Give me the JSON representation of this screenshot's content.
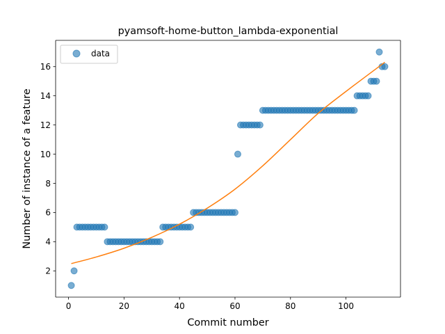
{
  "chart_data": {
    "type": "scatter",
    "title": "pyamsoft-home-button_lambda-exponential",
    "xlabel": "Commit number",
    "ylabel": "Number of instance of a feature",
    "xlim": [
      -4.65,
      119.65
    ],
    "ylim": [
      0.2,
      17.8
    ],
    "x_ticks": [
      0,
      20,
      40,
      60,
      80,
      100
    ],
    "y_ticks": [
      2,
      4,
      6,
      8,
      10,
      12,
      14,
      16
    ],
    "legend": {
      "position": "upper-left",
      "entries": [
        "data"
      ]
    },
    "grid": false,
    "series": [
      {
        "name": "data",
        "kind": "scatter",
        "color": "#1f77b4",
        "points": [
          [
            1,
            1
          ],
          [
            2,
            2
          ],
          [
            3,
            5
          ],
          [
            4,
            5
          ],
          [
            5,
            5
          ],
          [
            6,
            5
          ],
          [
            7,
            5
          ],
          [
            8,
            5
          ],
          [
            9,
            5
          ],
          [
            10,
            5
          ],
          [
            11,
            5
          ],
          [
            12,
            5
          ],
          [
            13,
            5
          ],
          [
            14,
            4
          ],
          [
            15,
            4
          ],
          [
            16,
            4
          ],
          [
            17,
            4
          ],
          [
            18,
            4
          ],
          [
            19,
            4
          ],
          [
            20,
            4
          ],
          [
            21,
            4
          ],
          [
            22,
            4
          ],
          [
            23,
            4
          ],
          [
            24,
            4
          ],
          [
            25,
            4
          ],
          [
            26,
            4
          ],
          [
            27,
            4
          ],
          [
            28,
            4
          ],
          [
            29,
            4
          ],
          [
            30,
            4
          ],
          [
            31,
            4
          ],
          [
            32,
            4
          ],
          [
            33,
            4
          ],
          [
            34,
            5
          ],
          [
            35,
            5
          ],
          [
            36,
            5
          ],
          [
            37,
            5
          ],
          [
            38,
            5
          ],
          [
            39,
            5
          ],
          [
            40,
            5
          ],
          [
            41,
            5
          ],
          [
            42,
            5
          ],
          [
            43,
            5
          ],
          [
            44,
            5
          ],
          [
            45,
            6
          ],
          [
            46,
            6
          ],
          [
            47,
            6
          ],
          [
            48,
            6
          ],
          [
            49,
            6
          ],
          [
            50,
            6
          ],
          [
            51,
            6
          ],
          [
            52,
            6
          ],
          [
            53,
            6
          ],
          [
            54,
            6
          ],
          [
            55,
            6
          ],
          [
            56,
            6
          ],
          [
            57,
            6
          ],
          [
            58,
            6
          ],
          [
            59,
            6
          ],
          [
            60,
            6
          ],
          [
            61,
            10
          ],
          [
            62,
            12
          ],
          [
            63,
            12
          ],
          [
            64,
            12
          ],
          [
            65,
            12
          ],
          [
            66,
            12
          ],
          [
            67,
            12
          ],
          [
            68,
            12
          ],
          [
            69,
            12
          ],
          [
            70,
            13
          ],
          [
            71,
            13
          ],
          [
            72,
            13
          ],
          [
            73,
            13
          ],
          [
            74,
            13
          ],
          [
            75,
            13
          ],
          [
            76,
            13
          ],
          [
            77,
            13
          ],
          [
            78,
            13
          ],
          [
            79,
            13
          ],
          [
            80,
            13
          ],
          [
            81,
            13
          ],
          [
            82,
            13
          ],
          [
            83,
            13
          ],
          [
            84,
            13
          ],
          [
            85,
            13
          ],
          [
            86,
            13
          ],
          [
            87,
            13
          ],
          [
            88,
            13
          ],
          [
            89,
            13
          ],
          [
            90,
            13
          ],
          [
            91,
            13
          ],
          [
            92,
            13
          ],
          [
            93,
            13
          ],
          [
            94,
            13
          ],
          [
            95,
            13
          ],
          [
            96,
            13
          ],
          [
            97,
            13
          ],
          [
            98,
            13
          ],
          [
            99,
            13
          ],
          [
            100,
            13
          ],
          [
            101,
            13
          ],
          [
            102,
            13
          ],
          [
            103,
            13
          ],
          [
            104,
            14
          ],
          [
            105,
            14
          ],
          [
            106,
            14
          ],
          [
            107,
            14
          ],
          [
            108,
            14
          ],
          [
            109,
            15
          ],
          [
            110,
            15
          ],
          [
            111,
            15
          ],
          [
            112,
            17
          ],
          [
            113,
            16
          ],
          [
            114,
            16
          ]
        ]
      },
      {
        "name": "",
        "kind": "line",
        "color": "#ff7f0e",
        "points": [
          [
            1,
            2.5
          ],
          [
            10,
            2.95
          ],
          [
            20,
            3.55
          ],
          [
            30,
            4.3
          ],
          [
            40,
            5.2
          ],
          [
            50,
            6.3
          ],
          [
            60,
            7.6
          ],
          [
            70,
            9.2
          ],
          [
            80,
            11.0
          ],
          [
            90,
            12.8
          ],
          [
            100,
            14.3
          ],
          [
            114,
            16.3
          ]
        ]
      }
    ]
  }
}
